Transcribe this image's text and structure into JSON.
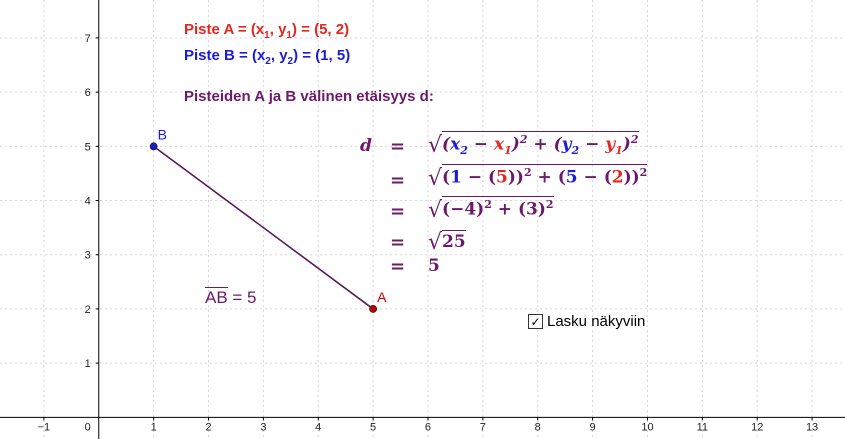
{
  "axes": {
    "x_ticks": [
      "−1",
      "1",
      "2",
      "3",
      "4",
      "5",
      "6",
      "7",
      "8",
      "9",
      "10",
      "11",
      "12",
      "13"
    ],
    "y_ticks": [
      "1",
      "2",
      "3",
      "4",
      "5",
      "6",
      "7"
    ],
    "origin_label": "0",
    "x_range": [
      -1.8,
      13.6
    ],
    "y_range": [
      -0.4,
      7.7
    ]
  },
  "points": {
    "A": {
      "label": "A",
      "x": 5,
      "y": 2,
      "color": "#cc0000"
    },
    "B": {
      "label": "B",
      "x": 1,
      "y": 5,
      "color": "#1b1bd9"
    }
  },
  "segment": {
    "color": "#5a1a5a"
  },
  "texts": {
    "pointA": {
      "prefix": "Piste A = (x",
      "s1": "1",
      "mid": ", y",
      "s2": "1",
      "suffix": ") = (5, 2)"
    },
    "pointB": {
      "prefix": "Piste B = (x",
      "s1": "2",
      "mid": ", y",
      "s2": "2",
      "suffix": ") = (1, 5)"
    },
    "distance_title": "Pisteiden A ja B välinen etäisyys d:",
    "segment_name": "AB",
    "segment_value": " = 5"
  },
  "formula": {
    "d": "d",
    "eq": "=",
    "line1": {
      "x2": "x",
      "x2s": "2",
      "minus": " − ",
      "x1": "x",
      "x1s": "1",
      "plus": " + ",
      "y2": "y",
      "y2s": "2",
      "y1": "y",
      "y1s": "1",
      "exp": "2"
    },
    "line2": {
      "one": "1",
      "five": "5",
      "five_b": "5",
      "two": "2",
      "exp": "2"
    },
    "line3": {
      "a": "(−4)",
      "b": "(3)",
      "exp": "2",
      "plus": " + "
    },
    "line4": {
      "val": "25"
    },
    "line5": {
      "val": "5"
    }
  },
  "checkbox": {
    "label": "Lasku näkyviin",
    "checked": true,
    "mark": "✓"
  },
  "colors": {
    "red": "#e8241f",
    "blue": "#1b1bd9",
    "purple": "#6b1a6b",
    "grid": "#d6d6d6",
    "axis": "#000000"
  }
}
